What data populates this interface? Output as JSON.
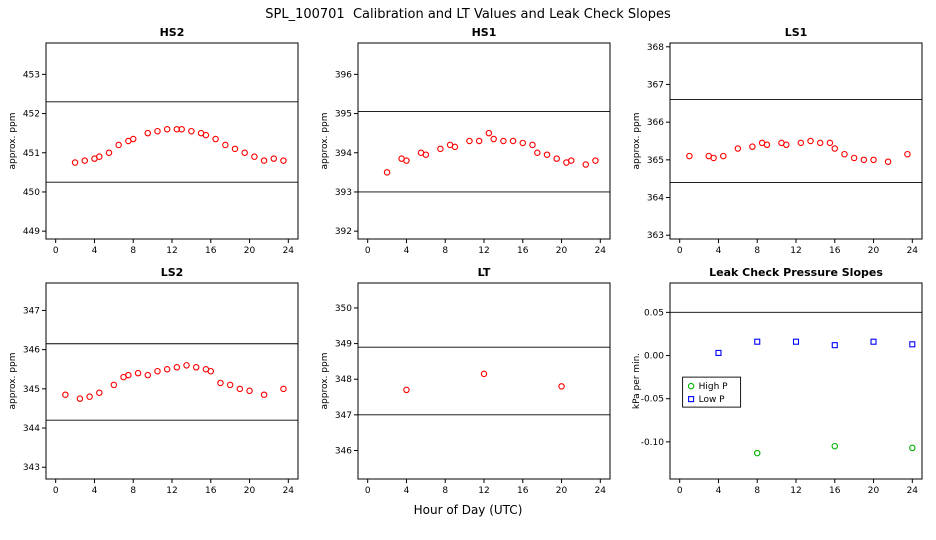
{
  "title": "SPL_100701  Calibration and LT Values and Leak Check Slopes",
  "xlabel": "Hour of Day (UTC)",
  "chart_data": [
    {
      "type": "scatter",
      "title": "HS2",
      "ylabel": "approx. ppm",
      "xlim": [
        -1,
        25
      ],
      "ylim": [
        448.8,
        453.8
      ],
      "xticks": [
        0,
        4,
        8,
        12,
        16,
        20,
        24
      ],
      "yticks": [
        449,
        450,
        451,
        452,
        453
      ],
      "ytick_labels": [
        "449",
        "450",
        "451",
        "452",
        "453"
      ],
      "hlines": [
        450.25,
        452.3
      ],
      "series": [
        {
          "name": "HS2",
          "marker": "circle",
          "color": "#ff0000",
          "points": [
            [
              2,
              450.75
            ],
            [
              3,
              450.8
            ],
            [
              4,
              450.85
            ],
            [
              4.5,
              450.9
            ],
            [
              5.5,
              451.0
            ],
            [
              6.5,
              451.2
            ],
            [
              7.5,
              451.3
            ],
            [
              8,
              451.35
            ],
            [
              9.5,
              451.5
            ],
            [
              10.5,
              451.55
            ],
            [
              11.5,
              451.6
            ],
            [
              12.5,
              451.6
            ],
            [
              13,
              451.6
            ],
            [
              14,
              451.55
            ],
            [
              15,
              451.5
            ],
            [
              15.5,
              451.45
            ],
            [
              16.5,
              451.35
            ],
            [
              17.5,
              451.2
            ],
            [
              18.5,
              451.1
            ],
            [
              19.5,
              451.0
            ],
            [
              20.5,
              450.9
            ],
            [
              21.5,
              450.8
            ],
            [
              22.5,
              450.85
            ],
            [
              23.5,
              450.8
            ]
          ]
        }
      ]
    },
    {
      "type": "scatter",
      "title": "HS1",
      "ylabel": "approx. ppm",
      "xlim": [
        -1,
        25
      ],
      "ylim": [
        391.8,
        396.8
      ],
      "xticks": [
        0,
        4,
        8,
        12,
        16,
        20,
        24
      ],
      "yticks": [
        392,
        393,
        394,
        395,
        396
      ],
      "ytick_labels": [
        "392",
        "393",
        "394",
        "395",
        "396"
      ],
      "hlines": [
        393.0,
        395.05
      ],
      "series": [
        {
          "name": "HS1",
          "marker": "circle",
          "color": "#ff0000",
          "points": [
            [
              2,
              393.5
            ],
            [
              3.5,
              393.85
            ],
            [
              4,
              393.8
            ],
            [
              5.5,
              394.0
            ],
            [
              6,
              393.95
            ],
            [
              7.5,
              394.1
            ],
            [
              8.5,
              394.2
            ],
            [
              9,
              394.15
            ],
            [
              10.5,
              394.3
            ],
            [
              11.5,
              394.3
            ],
            [
              12.5,
              394.5
            ],
            [
              13,
              394.35
            ],
            [
              14,
              394.3
            ],
            [
              15,
              394.3
            ],
            [
              16,
              394.25
            ],
            [
              17,
              394.2
            ],
            [
              17.5,
              394.0
            ],
            [
              18.5,
              393.95
            ],
            [
              19.5,
              393.85
            ],
            [
              20.5,
              393.75
            ],
            [
              21,
              393.8
            ],
            [
              22.5,
              393.7
            ],
            [
              23.5,
              393.8
            ]
          ]
        }
      ]
    },
    {
      "type": "scatter",
      "title": "LS1",
      "ylabel": "approx. ppm",
      "xlim": [
        -1,
        25
      ],
      "ylim": [
        362.9,
        368.1
      ],
      "xticks": [
        0,
        4,
        8,
        12,
        16,
        20,
        24
      ],
      "yticks": [
        363,
        364,
        365,
        366,
        367,
        368
      ],
      "ytick_labels": [
        "363",
        "364",
        "365",
        "366",
        "367",
        "368"
      ],
      "hlines": [
        364.4,
        366.6
      ],
      "series": [
        {
          "name": "LS1",
          "marker": "circle",
          "color": "#ff0000",
          "points": [
            [
              1,
              365.1
            ],
            [
              3,
              365.1
            ],
            [
              3.5,
              365.05
            ],
            [
              4.5,
              365.1
            ],
            [
              6,
              365.3
            ],
            [
              7.5,
              365.35
            ],
            [
              8.5,
              365.45
            ],
            [
              9,
              365.4
            ],
            [
              10.5,
              365.45
            ],
            [
              11,
              365.4
            ],
            [
              12.5,
              365.45
            ],
            [
              13.5,
              365.5
            ],
            [
              14.5,
              365.45
            ],
            [
              15.5,
              365.45
            ],
            [
              16,
              365.3
            ],
            [
              17,
              365.15
            ],
            [
              18,
              365.05
            ],
            [
              19,
              365.0
            ],
            [
              20,
              365.0
            ],
            [
              21.5,
              364.95
            ],
            [
              23.5,
              365.15
            ]
          ]
        }
      ]
    },
    {
      "type": "scatter",
      "title": "LS2",
      "ylabel": "approx. ppm",
      "xlim": [
        -1,
        25
      ],
      "ylim": [
        342.7,
        347.7
      ],
      "xticks": [
        0,
        4,
        8,
        12,
        16,
        20,
        24
      ],
      "yticks": [
        343,
        344,
        345,
        346,
        347
      ],
      "ytick_labels": [
        "343",
        "344",
        "345",
        "346",
        "347"
      ],
      "hlines": [
        344.2,
        346.15
      ],
      "series": [
        {
          "name": "LS2",
          "marker": "circle",
          "color": "#ff0000",
          "points": [
            [
              1,
              344.85
            ],
            [
              2.5,
              344.75
            ],
            [
              3.5,
              344.8
            ],
            [
              4.5,
              344.9
            ],
            [
              6,
              345.1
            ],
            [
              7,
              345.3
            ],
            [
              7.5,
              345.35
            ],
            [
              8.5,
              345.4
            ],
            [
              9.5,
              345.35
            ],
            [
              10.5,
              345.45
            ],
            [
              11.5,
              345.5
            ],
            [
              12.5,
              345.55
            ],
            [
              13.5,
              345.6
            ],
            [
              14.5,
              345.55
            ],
            [
              15.5,
              345.5
            ],
            [
              16,
              345.45
            ],
            [
              17,
              345.15
            ],
            [
              18,
              345.1
            ],
            [
              19,
              345.0
            ],
            [
              20,
              344.95
            ],
            [
              21.5,
              344.85
            ],
            [
              23.5,
              345.0
            ]
          ]
        }
      ]
    },
    {
      "type": "scatter",
      "title": "LT",
      "ylabel": "approx. ppm",
      "xlim": [
        -1,
        25
      ],
      "ylim": [
        345.2,
        350.7
      ],
      "xticks": [
        0,
        4,
        8,
        12,
        16,
        20,
        24
      ],
      "yticks": [
        346,
        347,
        348,
        349,
        350
      ],
      "ytick_labels": [
        "346",
        "347",
        "348",
        "349",
        "350"
      ],
      "hlines": [
        347.0,
        348.9
      ],
      "series": [
        {
          "name": "LT",
          "marker": "circle",
          "color": "#ff0000",
          "points": [
            [
              4,
              347.7
            ],
            [
              12,
              348.15
            ],
            [
              20,
              347.8
            ]
          ]
        }
      ]
    },
    {
      "type": "scatter",
      "title": "Leak Check Pressure Slopes",
      "ylabel": "kPa per min.",
      "xlim": [
        -1,
        25
      ],
      "ylim": [
        -0.143,
        0.084
      ],
      "xticks": [
        0,
        4,
        8,
        12,
        16,
        20,
        24
      ],
      "yticks": [
        -0.1,
        -0.05,
        0.0,
        0.05
      ],
      "ytick_labels": [
        "-0.10",
        "-0.05",
        "0.00",
        "0.05"
      ],
      "hlines": [
        0.05
      ],
      "legend": {
        "x": 0.3,
        "y": -0.025,
        "entries": [
          "High P",
          "Low P"
        ]
      },
      "series": [
        {
          "name": "High P",
          "marker": "circle",
          "color": "#00b400",
          "points": [
            [
              8,
              -0.113
            ],
            [
              16,
              -0.105
            ],
            [
              24,
              -0.107
            ]
          ]
        },
        {
          "name": "Low P",
          "marker": "square",
          "color": "#0000ff",
          "points": [
            [
              4,
              0.003
            ],
            [
              8,
              0.016
            ],
            [
              12,
              0.016
            ],
            [
              16,
              0.012
            ],
            [
              20,
              0.016
            ],
            [
              24,
              0.013
            ]
          ]
        }
      ]
    }
  ]
}
